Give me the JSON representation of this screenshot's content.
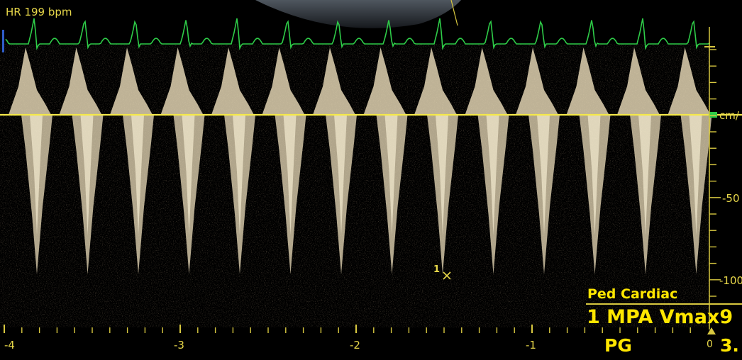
{
  "heart_rate": "HR 199 bpm",
  "velocity_unit": "cm/",
  "velocity_labels": [
    "-50",
    "-100"
  ],
  "time_labels": [
    "-4",
    "-3",
    "-2",
    "-1"
  ],
  "preset": "Ped Cardiac",
  "measurement": {
    "line1": "1 MPA Vmax9",
    "pg_label": "PG",
    "pg_value": "3.",
    "zero_label": "0"
  },
  "cursor_marker": "1",
  "colors": {
    "ecg": "#2ecc48",
    "baseline": "#f4e84a",
    "doppler": "#f4e4c0",
    "text": "#e8d84a",
    "measure": "#ffe600"
  },
  "icons": [
    "cursor-x-icon",
    "baseline-arrow-icon",
    "scale-marker-icon"
  ]
}
